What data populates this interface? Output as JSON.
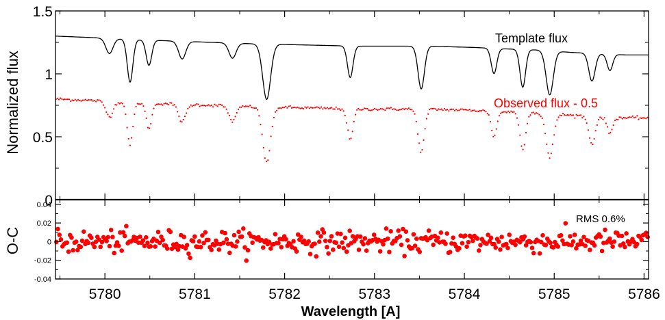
{
  "chart_data": [
    {
      "type": "line",
      "panel": "top",
      "ylabel": "Normalized flux",
      "xlabel": "",
      "xlim": [
        5779.45,
        5786.05
      ],
      "ylim": [
        0,
        1.5
      ],
      "yticks": [
        0,
        0.5,
        1,
        1.5
      ],
      "ytick_labels": [
        "0",
        "0.5",
        "1",
        "1.5"
      ],
      "grid": false,
      "annotations": [
        {
          "text": "Template flux",
          "color": "#000000"
        },
        {
          "text": "Observed flux - 0.5",
          "color": "#ff0000"
        }
      ],
      "continuum": {
        "x": [
          5779.45,
          5779.8,
          5780.4,
          5781.2,
          5781.6,
          5782.2,
          5782.8,
          5783.6,
          5784.1,
          5784.4,
          5784.8,
          5785.2,
          5785.5,
          5785.8,
          5786.05
        ],
        "y": [
          1.3,
          1.29,
          1.27,
          1.25,
          1.24,
          1.23,
          1.22,
          1.22,
          1.21,
          1.2,
          1.19,
          1.17,
          1.16,
          1.15,
          1.15
        ]
      },
      "lines": [
        {
          "center": 5780.05,
          "depth": 0.12,
          "width": 0.045
        },
        {
          "center": 5780.28,
          "depth": 0.34,
          "width": 0.035
        },
        {
          "center": 5780.49,
          "depth": 0.2,
          "width": 0.035
        },
        {
          "center": 5780.86,
          "depth": 0.14,
          "width": 0.045
        },
        {
          "center": 5781.42,
          "depth": 0.12,
          "width": 0.045
        },
        {
          "center": 5781.8,
          "depth": 0.44,
          "width": 0.05
        },
        {
          "center": 5782.73,
          "depth": 0.25,
          "width": 0.035
        },
        {
          "center": 5783.52,
          "depth": 0.34,
          "width": 0.04
        },
        {
          "center": 5784.33,
          "depth": 0.2,
          "width": 0.035
        },
        {
          "center": 5784.65,
          "depth": 0.3,
          "width": 0.035
        },
        {
          "center": 5784.95,
          "depth": 0.35,
          "width": 0.045
        },
        {
          "center": 5785.42,
          "depth": 0.22,
          "width": 0.04
        },
        {
          "center": 5785.62,
          "depth": 0.13,
          "width": 0.035
        }
      ],
      "series": [
        {
          "name": "Template flux",
          "color": "#000000",
          "style": "line",
          "offset": 0
        },
        {
          "name": "Observed flux - 0.5",
          "color": "#ff0000",
          "style": "dots",
          "offset": -0.5
        }
      ]
    },
    {
      "type": "scatter",
      "panel": "bottom",
      "ylabel": "O-C",
      "xlabel": "Wavelength [A]",
      "xlim": [
        5779.45,
        5786.05
      ],
      "ylim": [
        -0.04,
        0.045
      ],
      "yticks": [
        -0.04,
        -0.02,
        0,
        0.02,
        0.04
      ],
      "ytick_labels": [
        "-0.04",
        "-0.02",
        "0",
        "0.02",
        "0.04"
      ],
      "xticks": [
        5780,
        5781,
        5782,
        5783,
        5784,
        5785,
        5786
      ],
      "xtick_labels": [
        "5780",
        "5781",
        "5782",
        "5783",
        "5784",
        "5785",
        "5786"
      ],
      "grid": false,
      "annotations": [
        {
          "text": "RMS 0.6%",
          "color": "#000000"
        }
      ],
      "rms": 0.006,
      "series": [
        {
          "color": "#ff0000",
          "style": "dots",
          "count": 390
        }
      ]
    }
  ]
}
